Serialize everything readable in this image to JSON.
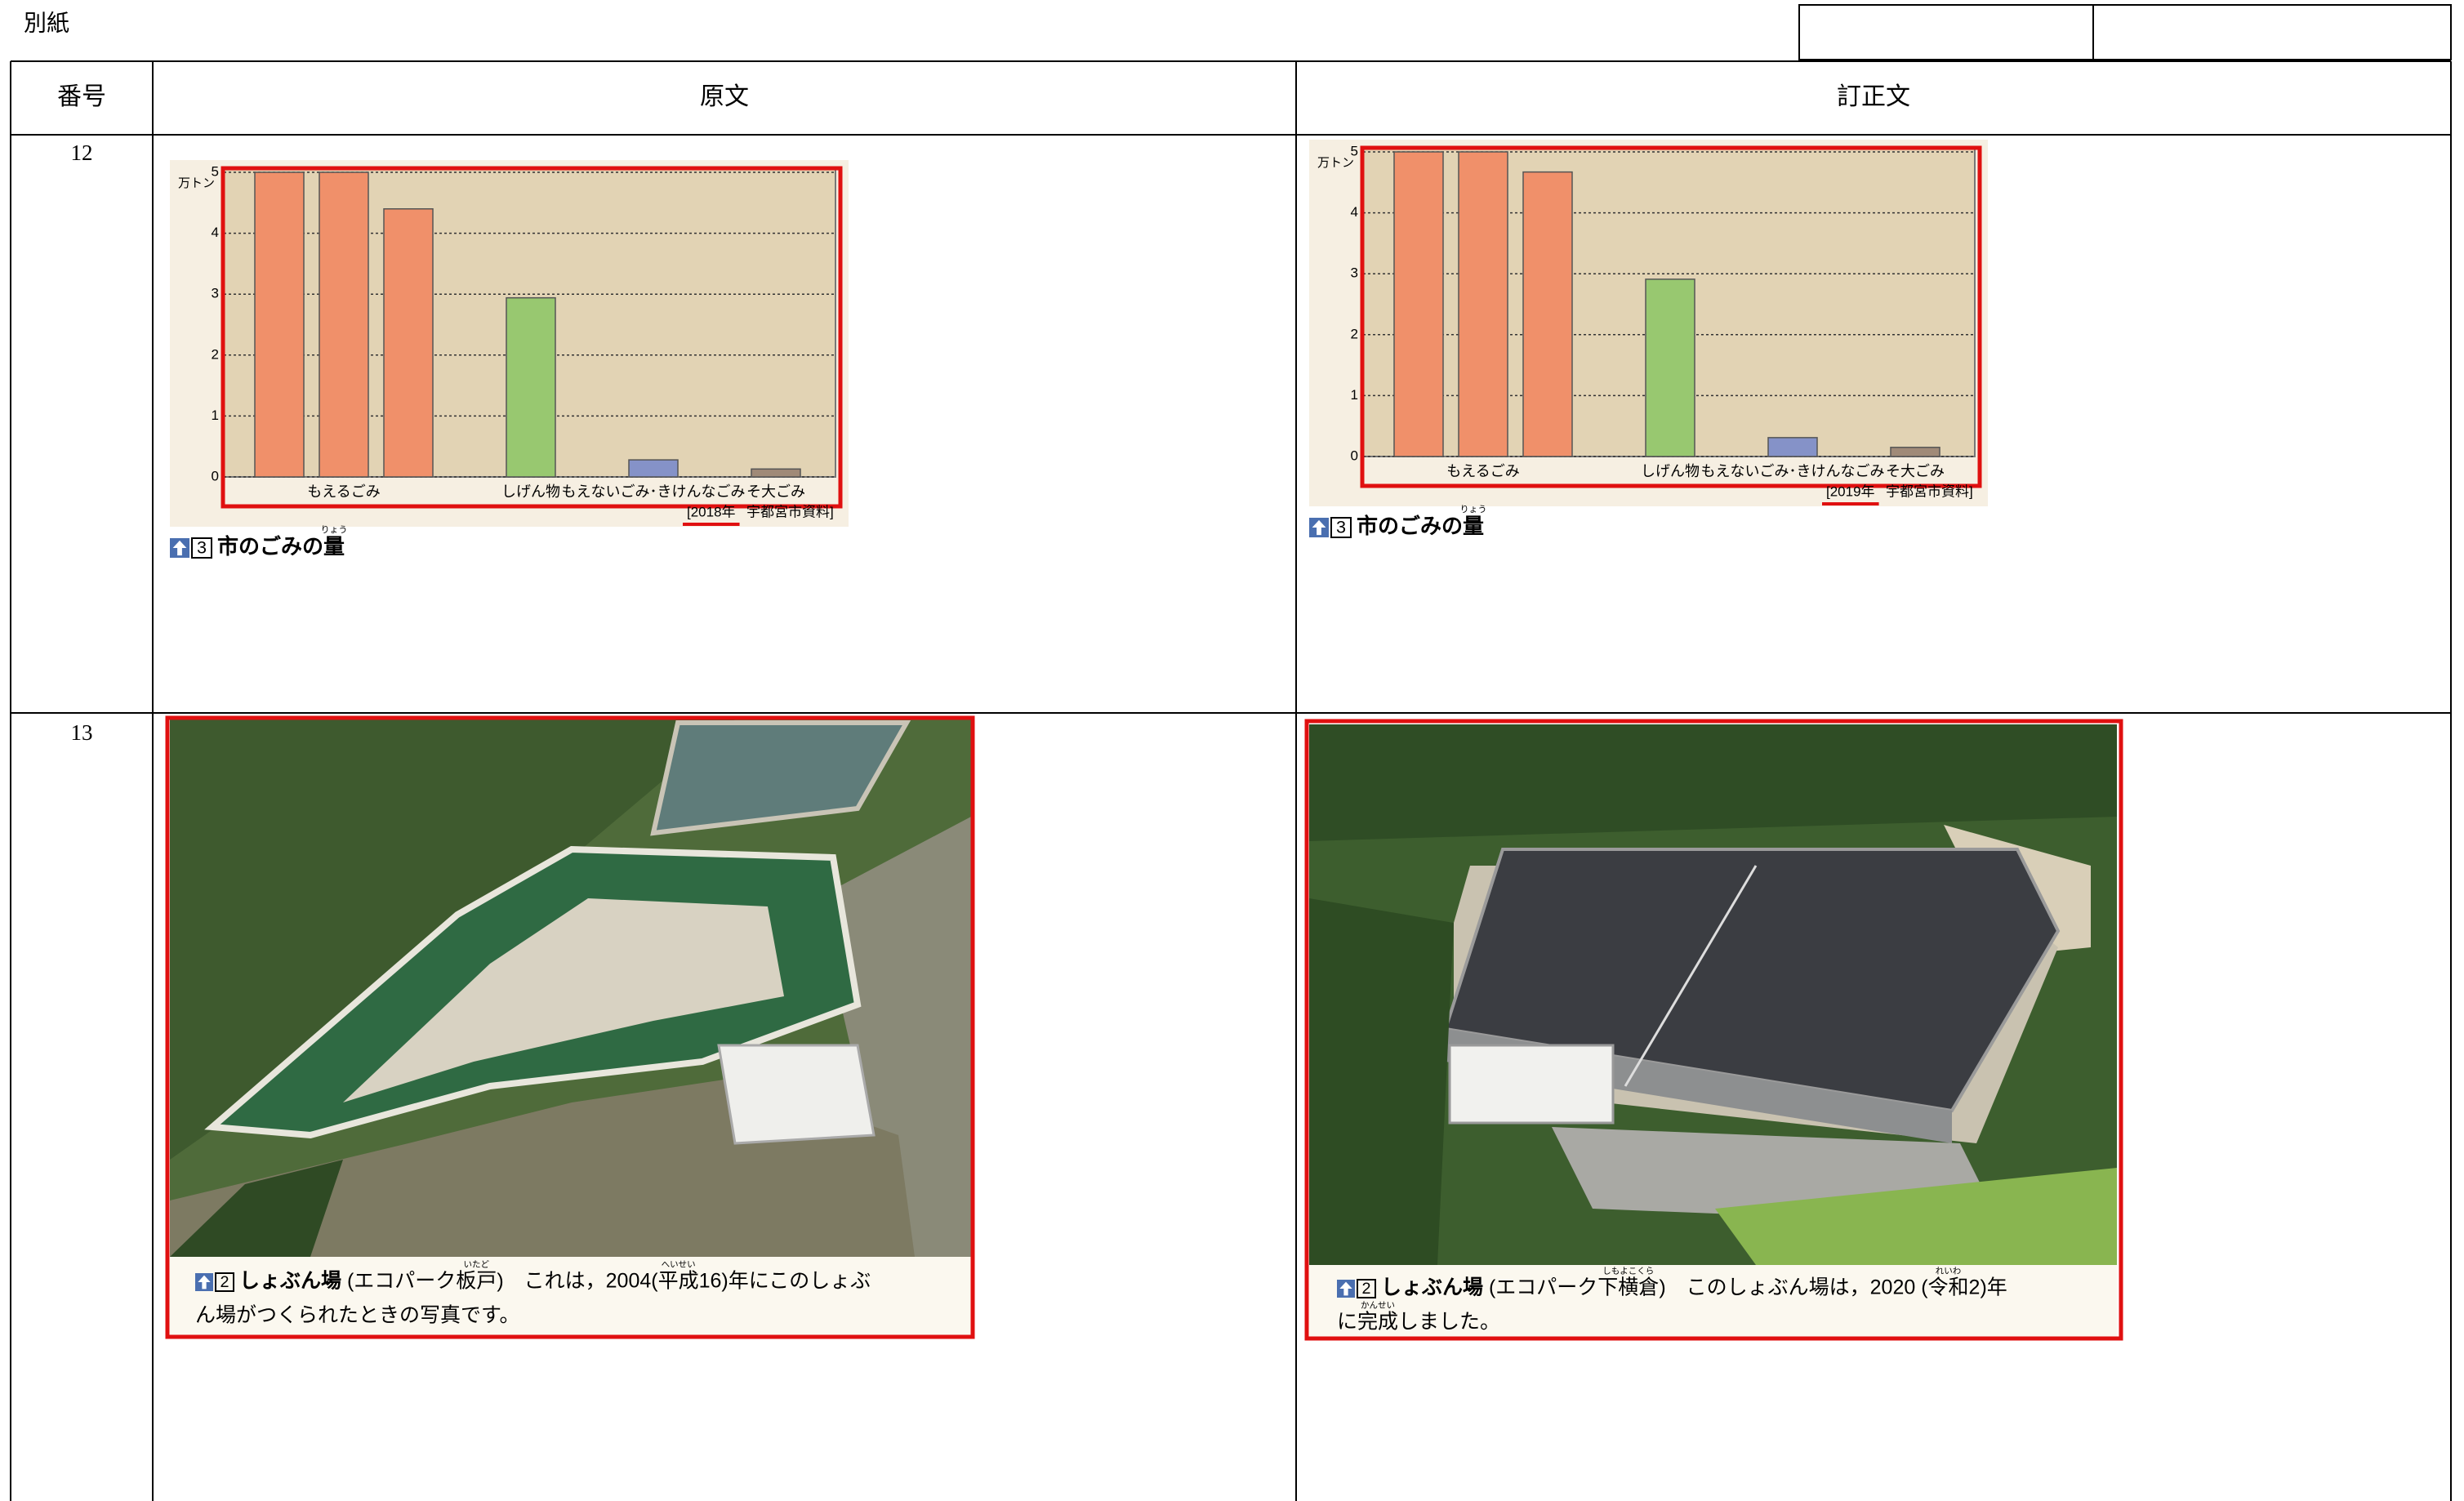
{
  "header": {
    "title": "別紙"
  },
  "table": {
    "columns": [
      "番号",
      "原文",
      "訂正文"
    ],
    "rows": [
      {
        "number": "12",
        "cells": [
          {
            "type": "bar",
            "unit": "万トン",
            "ylim": [
              0,
              5
            ],
            "yticks": [
              0,
              1,
              2,
              3,
              4,
              5
            ],
            "groups": [
              {
                "label": "もえるごみ",
                "color": "#f0906a",
                "values": [
                  5,
                  5,
                  4.4
                ]
              },
              {
                "label": "しげん物",
                "color": "#98c870",
                "values": [
                  2.94
                ]
              },
              {
                "label": "もえないごみ･きけんなごみ",
                "color": "#8592c8",
                "values": [
                  0.28
                ]
              },
              {
                "label": "そ大ごみ",
                "color": "#a08a78",
                "values": [
                  0.13
                ]
              }
            ],
            "year": "[2018年",
            "source": "宇都宮市資料]",
            "figure_number": "3",
            "caption": [
              {
                "text": "市のごみの"
              },
              {
                "text": "量",
                "ruby": "りょう"
              }
            ]
          },
          {
            "type": "bar",
            "unit": "万トン",
            "ylim": [
              0,
              5
            ],
            "yticks": [
              0,
              1,
              2,
              3,
              4,
              5
            ],
            "groups": [
              {
                "label": "もえるごみ",
                "color": "#f0906a",
                "values": [
                  5,
                  5,
                  4.67
                ]
              },
              {
                "label": "しげん物",
                "color": "#98c870",
                "values": [
                  2.91
                ]
              },
              {
                "label": "もえないごみ･きけんなごみ",
                "color": "#8592c8",
                "values": [
                  0.31
                ]
              },
              {
                "label": "そ大ごみ",
                "color": "#a08a78",
                "values": [
                  0.15
                ]
              }
            ],
            "year": "[2019年",
            "source": "宇都宮市資料]",
            "figure_number": "3",
            "caption": [
              {
                "text": "市のごみの"
              },
              {
                "text": "量",
                "ruby": "りょう"
              }
            ]
          }
        ]
      },
      {
        "number": "13",
        "cells": [
          {
            "figure_number": "2",
            "caption_lines": [
              [
                {
                  "text": "しょぶん場",
                  "bold": true
                },
                {
                  "text": " (エコパーク"
                },
                {
                  "text": "板戸",
                  "ruby": "いたど"
                },
                {
                  "text": ")　これは，2004("
                },
                {
                  "text": "平成",
                  "ruby": "へいせい"
                },
                {
                  "text": "16)年にこのしょぶ"
                }
              ],
              [
                {
                  "text": "ん場がつくられたときの写真です。"
                }
              ]
            ]
          },
          {
            "figure_number": "2",
            "caption_lines": [
              [
                {
                  "text": "しょぶん場",
                  "bold": true
                },
                {
                  "text": " (エコパーク"
                },
                {
                  "text": "下横倉",
                  "ruby": "しもよこくら"
                },
                {
                  "text": ")　このしょぶん場は，2020 ("
                },
                {
                  "text": "令和",
                  "ruby": "れいわ"
                },
                {
                  "text": "2)年"
                }
              ],
              [
                {
                  "text": "に"
                },
                {
                  "text": "完成",
                  "ruby": "かんせい"
                },
                {
                  "text": "しました。"
                }
              ]
            ]
          }
        ]
      }
    ]
  }
}
